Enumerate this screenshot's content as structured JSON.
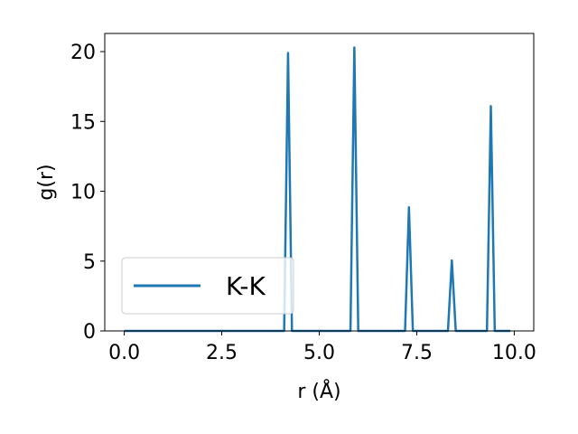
{
  "chart_data": {
    "type": "line",
    "xlabel": "r (Å)",
    "ylabel": "g(r)",
    "xlim": [
      -0.5,
      10.5
    ],
    "ylim": [
      0,
      21.3
    ],
    "grid": false,
    "legend_position": "lower-left",
    "x_ticks": [
      {
        "value": 0.0,
        "label": "0.0"
      },
      {
        "value": 2.5,
        "label": "2.5"
      },
      {
        "value": 5.0,
        "label": "5.0"
      },
      {
        "value": 7.5,
        "label": "7.5"
      },
      {
        "value": 10.0,
        "label": "10.0"
      }
    ],
    "y_ticks": [
      {
        "value": 0,
        "label": "0"
      },
      {
        "value": 5,
        "label": "5"
      },
      {
        "value": 10,
        "label": "10"
      },
      {
        "value": 15,
        "label": "15"
      },
      {
        "value": 20,
        "label": "20"
      }
    ],
    "series": [
      {
        "name": "K-K",
        "color": "#1f77b4",
        "x": [
          0.0,
          4.1,
          4.2,
          4.3,
          5.8,
          5.9,
          6.0,
          7.2,
          7.3,
          7.4,
          8.3,
          8.4,
          8.5,
          9.3,
          9.4,
          9.5,
          9.9
        ],
        "y": [
          0,
          0,
          19.9,
          0,
          0,
          20.3,
          0,
          0,
          8.85,
          0,
          0,
          5.05,
          0,
          0,
          16.1,
          0,
          0
        ]
      }
    ]
  }
}
